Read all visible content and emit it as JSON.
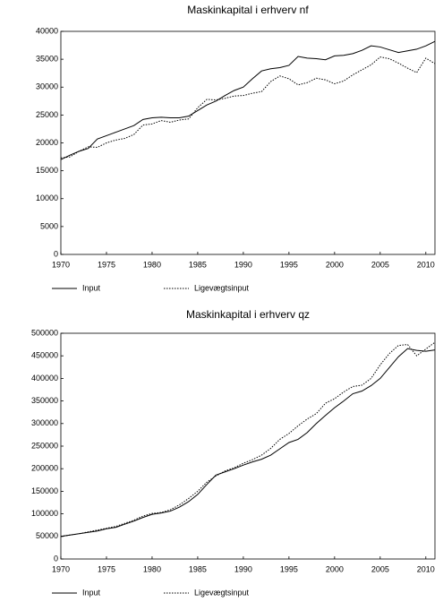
{
  "chart_data": [
    {
      "type": "line",
      "title": "Maskinkapital i erhverv nf",
      "x": [
        1970,
        1971,
        1972,
        1973,
        1974,
        1975,
        1976,
        1977,
        1978,
        1979,
        1980,
        1981,
        1982,
        1983,
        1984,
        1985,
        1986,
        1987,
        1988,
        1989,
        1990,
        1991,
        1992,
        1993,
        1994,
        1995,
        1996,
        1997,
        1998,
        1999,
        2000,
        2001,
        2002,
        2003,
        2004,
        2005,
        2006,
        2007,
        2008,
        2009,
        2010,
        2011
      ],
      "series": [
        {
          "name": "Input",
          "color": "#000000",
          "style": "solid",
          "values": [
            17000,
            17800,
            18500,
            19000,
            20700,
            21300,
            21900,
            22500,
            23100,
            24200,
            24500,
            24600,
            24500,
            24500,
            24800,
            25800,
            26800,
            27500,
            28500,
            29400,
            30000,
            31500,
            32900,
            33300,
            33500,
            33900,
            35500,
            35200,
            35100,
            34900,
            35600,
            35700,
            36000,
            36600,
            37400,
            37200,
            36700,
            36200,
            36500,
            36800,
            37400,
            38200
          ]
        },
        {
          "name": "Ligevægtsinput",
          "color": "#000000",
          "style": "dotted",
          "values": [
            17300,
            17500,
            18500,
            19300,
            19200,
            20000,
            20500,
            20800,
            21500,
            23200,
            23400,
            24000,
            23700,
            24100,
            24300,
            26300,
            27800,
            27700,
            28000,
            28400,
            28500,
            28900,
            29200,
            31000,
            32000,
            31500,
            30400,
            30800,
            31600,
            31300,
            30600,
            31100,
            32200,
            33100,
            34000,
            35400,
            35100,
            34300,
            33400,
            32600,
            35200,
            34200
          ]
        }
      ],
      "xlim": [
        1970,
        2011
      ],
      "xticks": [
        1970,
        1975,
        1980,
        1985,
        1990,
        1995,
        2000,
        2005,
        2010
      ],
      "ylim": [
        0,
        40000
      ],
      "yticks": [
        0,
        5000,
        10000,
        15000,
        20000,
        25000,
        30000,
        35000,
        40000
      ]
    },
    {
      "type": "line",
      "title": "Maskinkapital i erhverv qz",
      "x": [
        1970,
        1971,
        1972,
        1973,
        1974,
        1975,
        1976,
        1977,
        1978,
        1979,
        1980,
        1981,
        1982,
        1983,
        1984,
        1985,
        1986,
        1987,
        1988,
        1989,
        1990,
        1991,
        1992,
        1993,
        1994,
        1995,
        1996,
        1997,
        1998,
        1999,
        2000,
        2001,
        2002,
        2003,
        2004,
        2005,
        2006,
        2007,
        2008,
        2009,
        2010,
        2011
      ],
      "series": [
        {
          "name": "Input",
          "color": "#000000",
          "style": "solid",
          "values": [
            50000,
            53000,
            56000,
            59000,
            62000,
            67000,
            70000,
            77000,
            84000,
            92000,
            99000,
            102000,
            106000,
            115000,
            127000,
            143000,
            165000,
            186000,
            193000,
            200000,
            208000,
            215000,
            221000,
            230000,
            244000,
            258000,
            265000,
            280000,
            300000,
            318000,
            335000,
            350000,
            366000,
            372000,
            384000,
            400000,
            424000,
            448000,
            466000,
            462000,
            460000,
            463000
          ]
        },
        {
          "name": "Ligevægtsinput",
          "color": "#000000",
          "style": "dotted",
          "values": [
            50000,
            53000,
            56000,
            60000,
            64000,
            68000,
            72000,
            79000,
            86000,
            95000,
            101000,
            103000,
            109000,
            120000,
            134000,
            150000,
            170000,
            184000,
            195000,
            202000,
            212000,
            220000,
            230000,
            245000,
            265000,
            278000,
            295000,
            310000,
            322000,
            345000,
            355000,
            370000,
            382000,
            385000,
            400000,
            430000,
            455000,
            473000,
            475000,
            450000,
            465000,
            480000
          ]
        }
      ],
      "xlim": [
        1970,
        2011
      ],
      "xticks": [
        1970,
        1975,
        1980,
        1985,
        1990,
        1995,
        2000,
        2005,
        2010
      ],
      "ylim": [
        0,
        500000
      ],
      "yticks": [
        0,
        50000,
        100000,
        150000,
        200000,
        250000,
        300000,
        350000,
        400000,
        450000,
        500000
      ]
    }
  ]
}
